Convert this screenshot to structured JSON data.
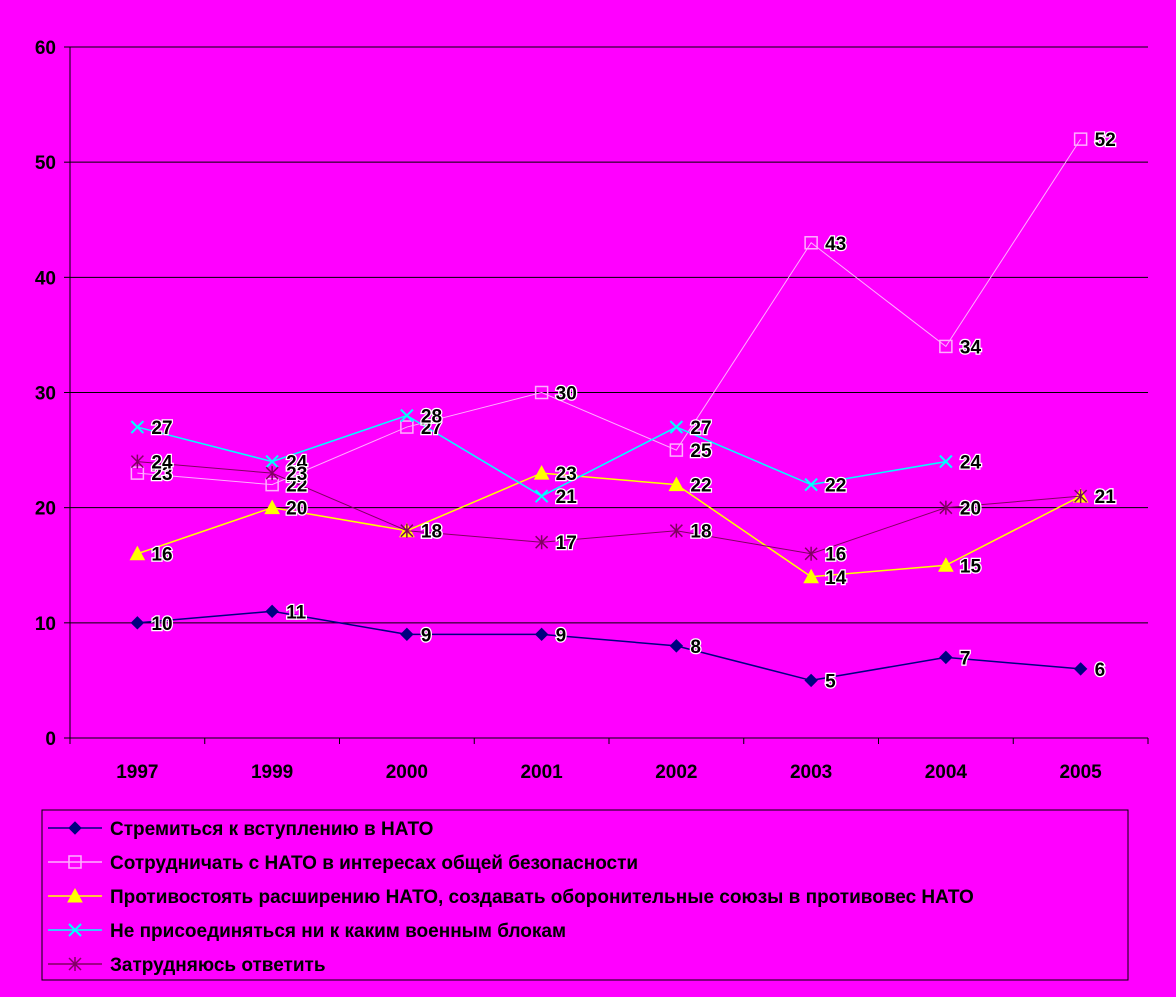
{
  "colors": {
    "background": "#FF00FF",
    "plot_area": "#FF00FF",
    "gridline": "#000000",
    "axis": "#000000"
  },
  "chart_data": {
    "type": "line",
    "categories": [
      "1997",
      "1999",
      "2000",
      "2001",
      "2002",
      "2003",
      "2004",
      "2005"
    ],
    "ylim": [
      0,
      60
    ],
    "yticks": [
      "0",
      "10",
      "20",
      "30",
      "40",
      "50",
      "60"
    ],
    "grid": true,
    "legend_position": "bottom",
    "title": "",
    "xlabel": "",
    "ylabel": "",
    "series": [
      {
        "name": "Стремиться к вступлению в НАТО",
        "values": [
          10,
          11,
          9,
          9,
          8,
          5,
          7,
          6
        ],
        "labels": [
          "10",
          "11",
          "9",
          "9",
          "8",
          "5",
          "7",
          "6"
        ],
        "color": "#000080",
        "marker": "diamond-icon"
      },
      {
        "name": "Сотрудничать с НАТО в интересах общей безопасности",
        "values": [
          23,
          22,
          27,
          30,
          25,
          43,
          34,
          52
        ],
        "labels": [
          "23",
          "22",
          "27",
          "30",
          "25",
          "43",
          "34",
          "52"
        ],
        "color": "#FFB0FF",
        "marker": "square-icon"
      },
      {
        "name": "Противостоять расширению НАТО, создавать оборонительные союзы в противовес НАТО",
        "values": [
          16,
          20,
          18,
          23,
          22,
          14,
          15,
          21
        ],
        "labels": [
          "16",
          "20",
          "18",
          "23",
          "22",
          "14",
          "15",
          "21"
        ],
        "color": "#FFFF00",
        "marker": "triangle-icon"
      },
      {
        "name": "Не присоединяться ни к каким военным блокам",
        "values": [
          27,
          24,
          28,
          21,
          27,
          22,
          24,
          null
        ],
        "labels": [
          "27",
          "24",
          "28",
          "21",
          "27",
          "22",
          "24",
          ""
        ],
        "color": "#00FFFF",
        "marker": "x-icon"
      },
      {
        "name": "Затрудняюсь ответить",
        "values": [
          24,
          23,
          18,
          17,
          18,
          16,
          20,
          21
        ],
        "labels": [
          "24",
          "23",
          "18",
          "17",
          "18",
          "16",
          "20",
          "21"
        ],
        "color": "#800060",
        "marker": "asterisk-icon"
      }
    ]
  }
}
